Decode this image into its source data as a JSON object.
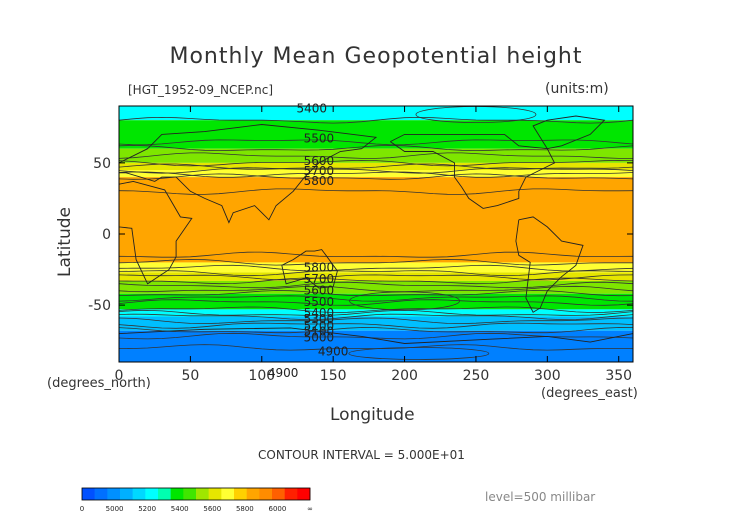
{
  "chart_data": {
    "type": "heatmap",
    "title": "Monthly Mean Geopotential height",
    "source_label": "[HGT_1952-09_NCEP.nc]",
    "units_label": "(units:m)",
    "ylabel": "Latitude",
    "ylabel_units": "(degrees_north)",
    "xlabel": "Longitude",
    "xlabel_units": "(degrees_east)",
    "xlim": [
      0,
      360
    ],
    "ylim": [
      -90,
      90
    ],
    "xticks": [
      0,
      50,
      100,
      150,
      200,
      250,
      300,
      350
    ],
    "yticks": [
      50,
      0,
      -50
    ],
    "contour_interval_text": "CONTOUR INTERVAL = 5.000E+01",
    "level_text": "level=500 millibar",
    "contour_labels": [
      {
        "text": "5400",
        "lon": 135,
        "lat": 89
      },
      {
        "text": "5500",
        "lon": 140,
        "lat": 68
      },
      {
        "text": "5600",
        "lon": 140,
        "lat": 52
      },
      {
        "text": "5700",
        "lon": 140,
        "lat": 45
      },
      {
        "text": "5800",
        "lon": 140,
        "lat": 38
      },
      {
        "text": "5800",
        "lon": 140,
        "lat": -23
      },
      {
        "text": "5700",
        "lon": 140,
        "lat": -31
      },
      {
        "text": "5600",
        "lon": 140,
        "lat": -39
      },
      {
        "text": "5500",
        "lon": 140,
        "lat": -47
      },
      {
        "text": "5400",
        "lon": 140,
        "lat": -55
      },
      {
        "text": "5300",
        "lon": 140,
        "lat": -59
      },
      {
        "text": "5200",
        "lon": 140,
        "lat": -64
      },
      {
        "text": "5100",
        "lon": 140,
        "lat": -68
      },
      {
        "text": "5000",
        "lon": 140,
        "lat": -72
      },
      {
        "text": "4900",
        "lon": 150,
        "lat": -82
      },
      {
        "text": "4900",
        "lon": 115,
        "lat": -97
      }
    ],
    "bands": [
      {
        "lat_top": 90,
        "lat_bottom": 80,
        "value_range": "5300-5400",
        "color": "#00ffff"
      },
      {
        "lat_top": 80,
        "lat_bottom": 60,
        "value_range": "5400-5500",
        "color": "#00e600"
      },
      {
        "lat_top": 60,
        "lat_bottom": 50,
        "value_range": "5500-5600",
        "color": "#7ee600"
      },
      {
        "lat_top": 50,
        "lat_bottom": 45,
        "value_range": "5600-5700",
        "color": "#e6e600"
      },
      {
        "lat_top": 45,
        "lat_bottom": 40,
        "value_range": "5700-5800",
        "color": "#ffff33"
      },
      {
        "lat_top": 40,
        "lat_bottom": -20,
        "value_range": "5800-6000",
        "color": "#ffa500"
      },
      {
        "lat_top": -20,
        "lat_bottom": -27,
        "value_range": "5700-5800",
        "color": "#ffff33"
      },
      {
        "lat_top": -27,
        "lat_bottom": -33,
        "value_range": "5600-5700",
        "color": "#e6e600"
      },
      {
        "lat_top": -33,
        "lat_bottom": -42,
        "value_range": "5500-5600",
        "color": "#7ee600"
      },
      {
        "lat_top": -42,
        "lat_bottom": -53,
        "value_range": "5400-5500",
        "color": "#00e600"
      },
      {
        "lat_top": -53,
        "lat_bottom": -58,
        "value_range": "5300-5400",
        "color": "#00ffff"
      },
      {
        "lat_top": -58,
        "lat_bottom": -68,
        "value_range": "5100-5300",
        "color": "#00bfff"
      },
      {
        "lat_top": -68,
        "lat_bottom": -90,
        "value_range": "4900-5100",
        "color": "#0080ff"
      }
    ],
    "colorbar": {
      "labels": [
        "0",
        "5000",
        "5200",
        "5400",
        "5600",
        "5800",
        "6000",
        "∞"
      ],
      "colors": [
        "#0050ff",
        "#0070ff",
        "#0090ff",
        "#00b0ff",
        "#00d8ff",
        "#00ffff",
        "#00ffb0",
        "#00e600",
        "#40e600",
        "#a0e600",
        "#e6e600",
        "#ffff33",
        "#ffd000",
        "#ffa500",
        "#ff8c00",
        "#ff6000",
        "#ff2000",
        "#ff0000"
      ]
    }
  }
}
